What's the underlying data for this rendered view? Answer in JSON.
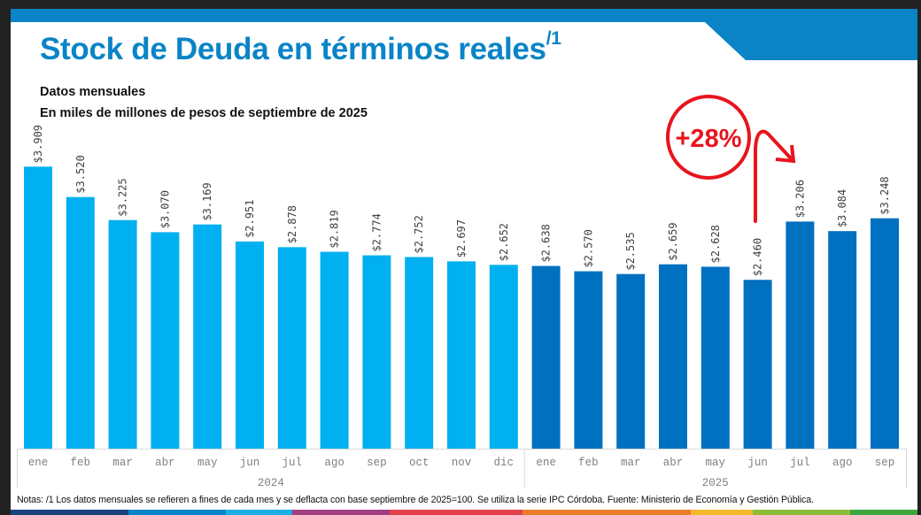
{
  "title": "Stock de Deuda en términos reales",
  "title_superscript": "/1",
  "subtitle_1": "Datos mensuales",
  "subtitle_2": "En miles de millones de pesos de septiembre de 2025",
  "notes": "Notas: /1 Los datos mensuales se refieren a fines de cada mes y se deflacta con base septiembre de 2025=100. Se utiliza la serie IPC Córdoba. Fuente: Ministerio de Economía y Gestión Pública.",
  "annotation": {
    "text": "+28%",
    "color": "#E8141E"
  },
  "colors": {
    "header": "#0A84C6",
    "bar_2024": "#00B0F0",
    "bar_2025": "#0070C0",
    "stripe": [
      "#16427E",
      "#0A84C6",
      "#1AAEE3",
      "#A23F82",
      "#E3424D",
      "#EB7C2B",
      "#F4B82C",
      "#8DBE3A",
      "#3DA63F"
    ]
  },
  "chart_data": {
    "type": "bar",
    "title": "Stock de Deuda en términos reales",
    "xlabel": "",
    "ylabel": "En miles de millones de pesos de septiembre de 2025",
    "ylim": [
      0.3,
      4.0
    ],
    "grid": false,
    "legend": "none",
    "groups": [
      {
        "year": "2024",
        "months": [
          "ene",
          "feb",
          "mar",
          "abr",
          "may",
          "jun",
          "jul",
          "ago",
          "sep",
          "oct",
          "nov",
          "dic"
        ],
        "values": [
          3.909,
          3.52,
          3.225,
          3.07,
          3.169,
          2.951,
          2.878,
          2.819,
          2.774,
          2.752,
          2.697,
          2.652
        ],
        "labels": [
          "$3.909",
          "$3.520",
          "$3.225",
          "$3.070",
          "$3.169",
          "$2.951",
          "$2.878",
          "$2.819",
          "$2.774",
          "$2.752",
          "$2.697",
          "$2.652"
        ]
      },
      {
        "year": "2025",
        "months": [
          "ene",
          "feb",
          "mar",
          "abr",
          "may",
          "jun",
          "jul",
          "ago",
          "sep"
        ],
        "values": [
          2.638,
          2.57,
          2.535,
          2.659,
          2.628,
          2.46,
          3.206,
          3.084,
          3.248
        ],
        "labels": [
          "$2.638",
          "$2.570",
          "$2.535",
          "$2.659",
          "$2.628",
          "$2.460",
          "$3.206",
          "$3.084",
          "$3.248"
        ]
      }
    ]
  }
}
